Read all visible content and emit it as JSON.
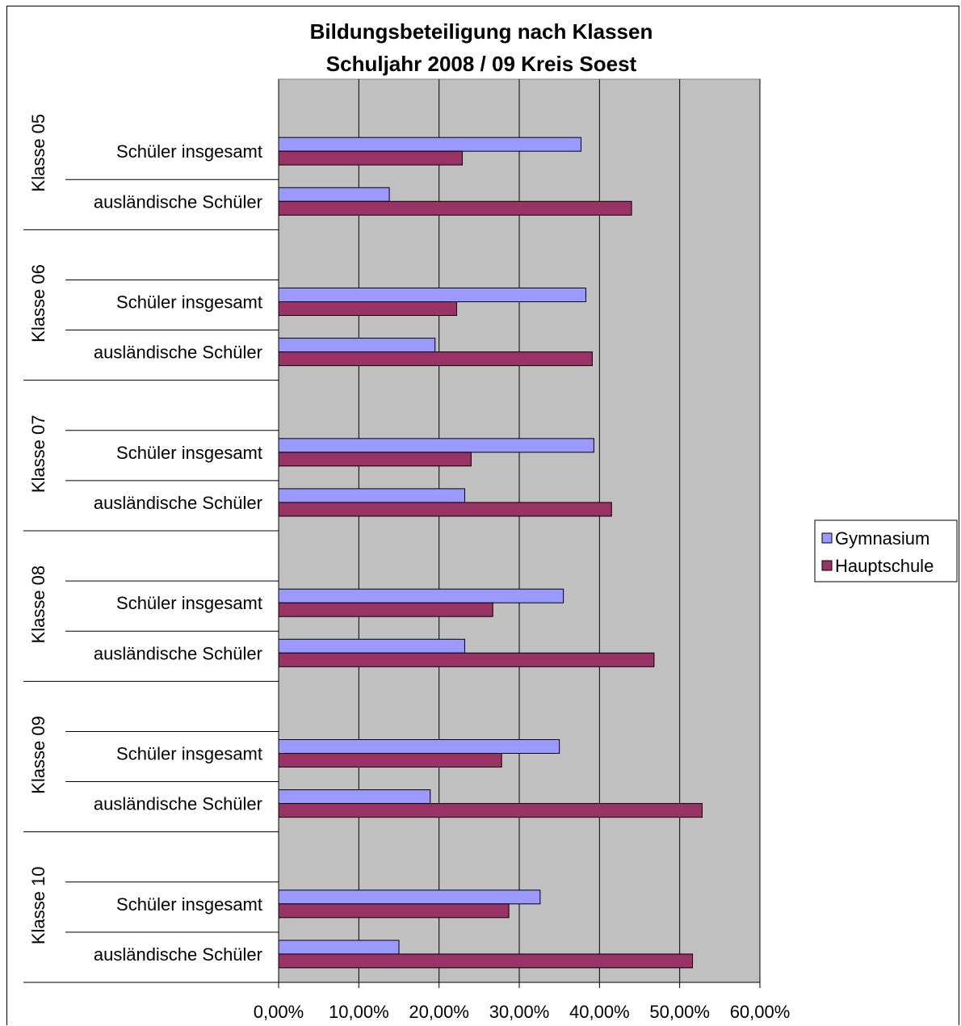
{
  "chart_data": {
    "type": "bar",
    "orientation": "horizontal",
    "title": "Bildungsbeteiligung nach Klassen",
    "subtitle": "Schuljahr 2008 / 09 Kreis Soest",
    "groups": [
      "Klasse 05",
      "Klasse 06",
      "Klasse 07",
      "Klasse 08",
      "Klasse 09",
      "Klasse 10"
    ],
    "categories": [
      "Schüler insgesamt",
      "ausländische Schüler"
    ],
    "series": [
      {
        "name": "Gymnasium",
        "color": "#9999ff",
        "values": [
          [
            37.7,
            13.8
          ],
          [
            38.3,
            19.5
          ],
          [
            39.3,
            23.2
          ],
          [
            35.5,
            23.2
          ],
          [
            35.0,
            18.9
          ],
          [
            32.6,
            15.0
          ]
        ]
      },
      {
        "name": "Hauptschule",
        "color": "#993366",
        "values": [
          [
            22.9,
            44.0
          ],
          [
            22.2,
            39.1
          ],
          [
            24.0,
            41.5
          ],
          [
            26.7,
            46.8
          ],
          [
            27.8,
            52.8
          ],
          [
            28.7,
            51.6
          ]
        ]
      }
    ],
    "xlim": [
      0,
      60
    ],
    "xticks": [
      "0,00%",
      "10,00%",
      "20,00%",
      "30,00%",
      "40,00%",
      "50,00%",
      "60,00%"
    ],
    "grid": true,
    "plot_background": "#c0c0c0",
    "legend_position": "right"
  }
}
